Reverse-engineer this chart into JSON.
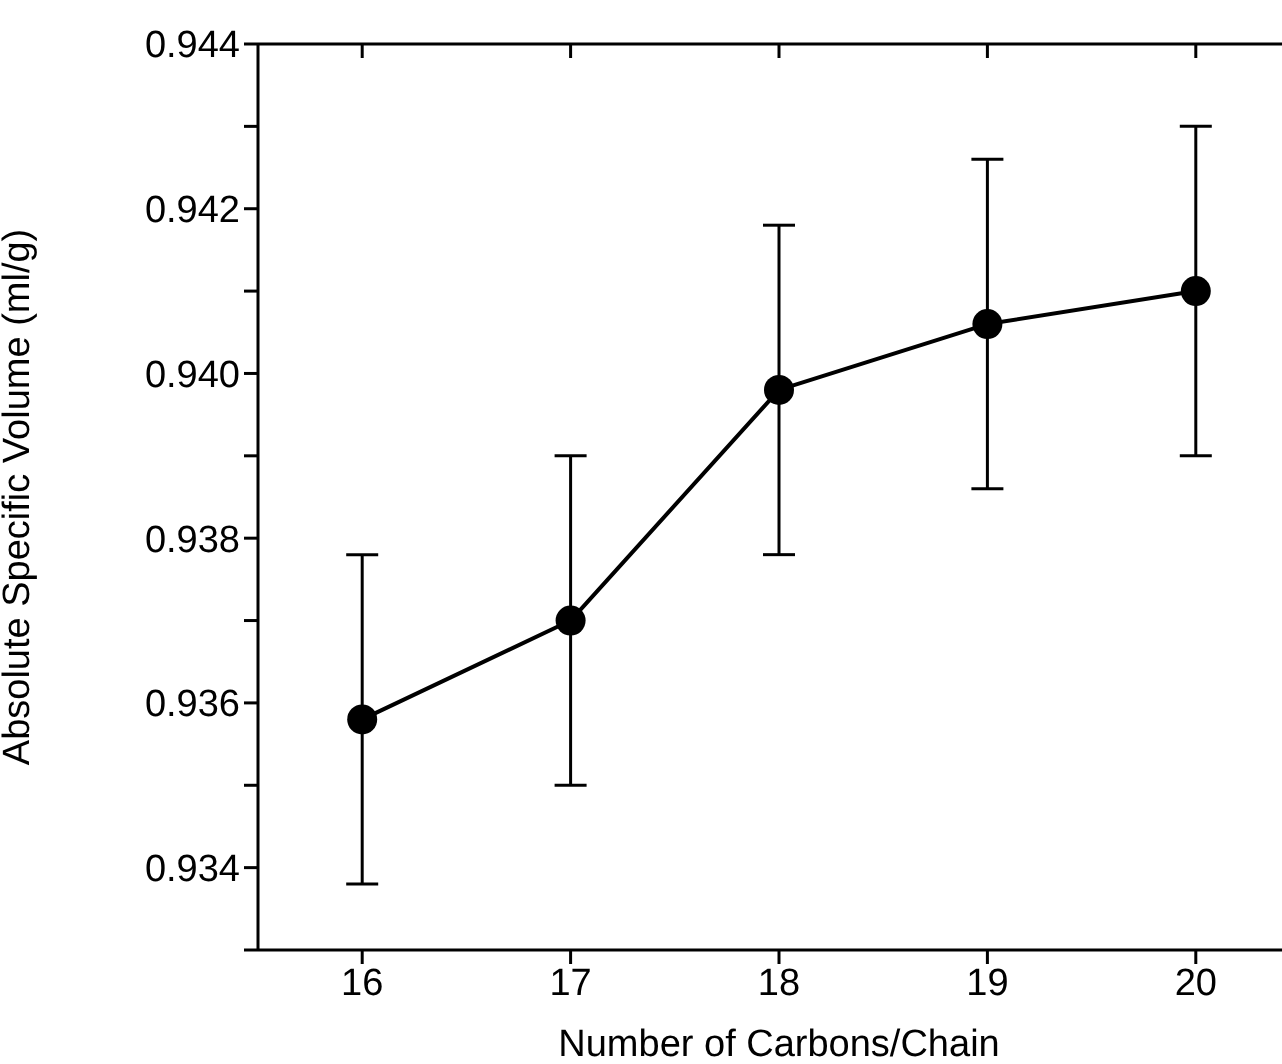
{
  "chart_data": {
    "type": "line",
    "xlabel": "Number of Carbons/Chain",
    "ylabel": "Absolute Specific Volume (ml/g)",
    "x": [
      16,
      17,
      18,
      19,
      20
    ],
    "series": [
      {
        "color": "#000000",
        "values": [
          0.9358,
          0.937,
          0.9398,
          0.9406,
          0.941
        ],
        "errors": [
          0.002,
          0.002,
          0.002,
          0.002,
          0.002
        ]
      }
    ],
    "xlim": [
      15.5,
      20.5
    ],
    "xticks": [
      16,
      17,
      18,
      19,
      20
    ],
    "ylim": [
      0.933,
      0.944
    ],
    "yticks": [
      {
        "value": 0.933,
        "label": null
      },
      {
        "value": 0.934,
        "label": "0.934"
      },
      {
        "value": 0.935,
        "label": null
      },
      {
        "value": 0.936,
        "label": "0.936"
      },
      {
        "value": 0.937,
        "label": null
      },
      {
        "value": 0.938,
        "label": "0.938"
      },
      {
        "value": 0.939,
        "label": null
      },
      {
        "value": 0.94,
        "label": "0.940"
      },
      {
        "value": 0.941,
        "label": null
      },
      {
        "value": 0.942,
        "label": "0.942"
      },
      {
        "value": 0.943,
        "label": null
      },
      {
        "value": 0.944,
        "label": "0.944"
      }
    ],
    "marker": "circle",
    "line_style": "solid",
    "grid": false,
    "legend": false
  }
}
